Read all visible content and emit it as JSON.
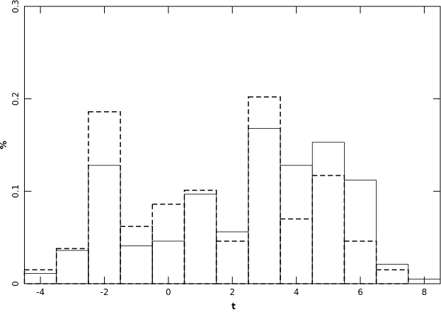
{
  "chart_data": {
    "type": "histogram",
    "xlabel": "t",
    "ylabel": "%",
    "bins": [
      -4.5,
      -3.5,
      -2.5,
      -1.5,
      -0.5,
      0.5,
      1.5,
      2.5,
      3.5,
      4.5,
      5.5,
      6.5,
      7.5,
      8.5
    ],
    "series": [
      {
        "color": "#000000",
        "style": "solid",
        "values": [
          0.011,
          0.036,
          0.128,
          0.041,
          0.046,
          0.097,
          0.056,
          0.168,
          0.128,
          0.153,
          0.112,
          0.021,
          0.005
        ]
      },
      {
        "color": "#000000",
        "style": "dashed",
        "values": [
          0.015,
          0.038,
          0.186,
          0.062,
          0.086,
          0.101,
          0.046,
          0.202,
          0.07,
          0.117,
          0.046,
          0.015,
          0
        ]
      }
    ],
    "xlim": [
      -4.5,
      8.5
    ],
    "xticks": [
      -4,
      -2,
      0,
      2,
      4,
      6,
      8
    ],
    "ylim": [
      0,
      0.3
    ],
    "yticks": [
      0,
      0.1,
      0.2,
      0.3
    ]
  }
}
